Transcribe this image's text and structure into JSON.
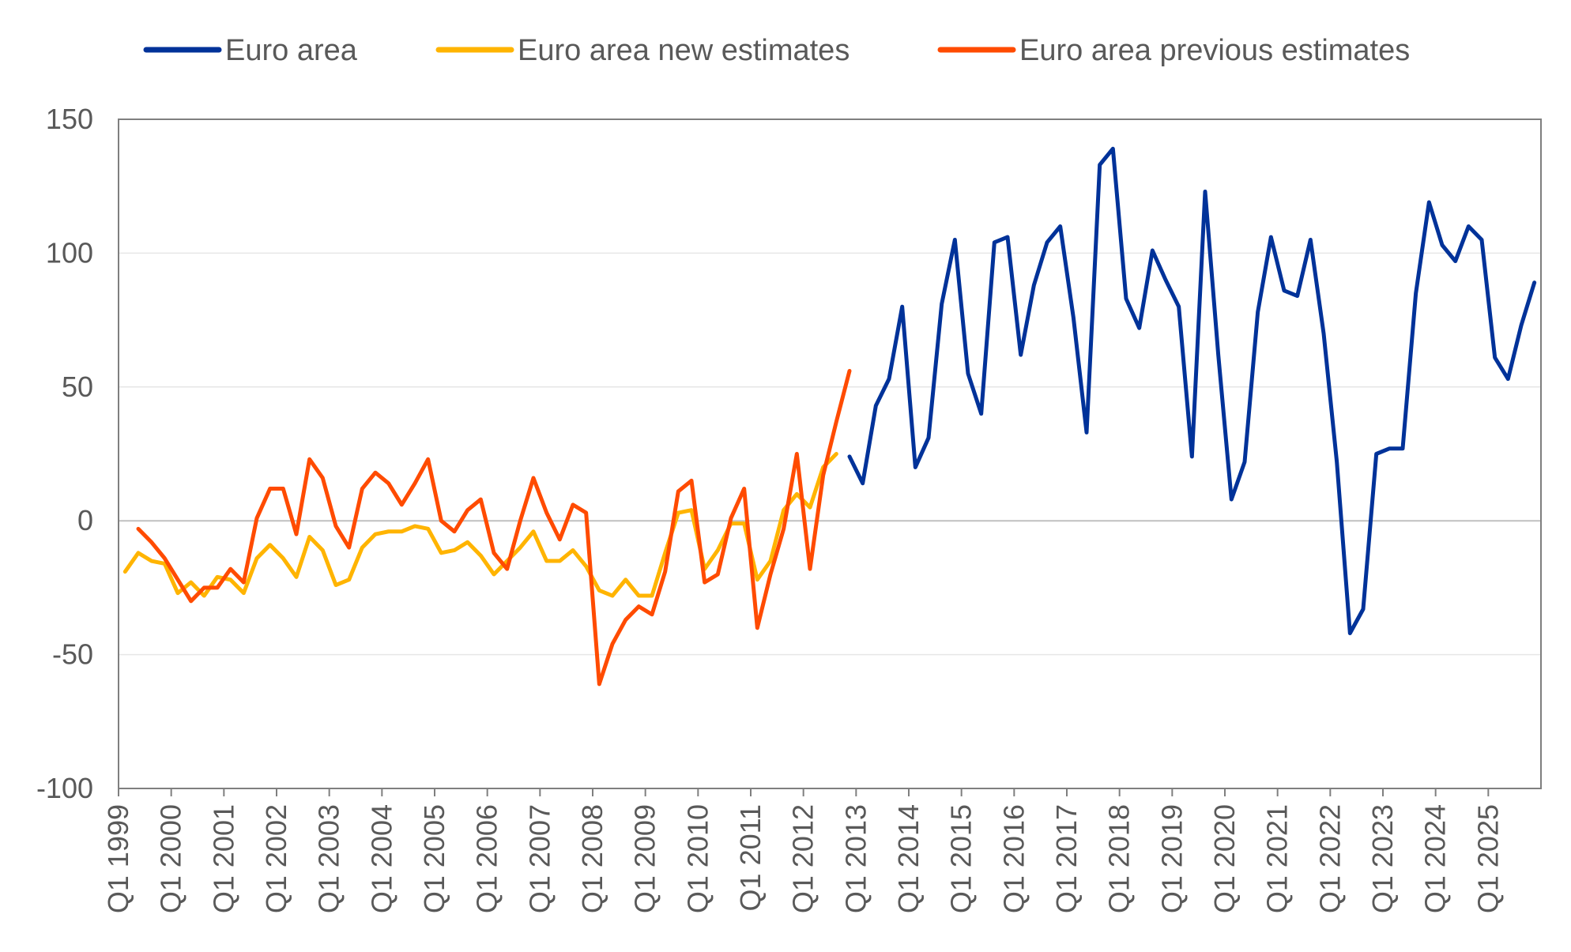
{
  "chart_data": {
    "type": "line",
    "title": "",
    "xlabel": "",
    "ylabel": "",
    "ylim": [
      -100,
      150
    ],
    "yticks": [
      -100,
      -50,
      0,
      50,
      100,
      150
    ],
    "x_start": "Q1 1999",
    "x_end": "Q4 2025",
    "xtick_labels": [
      "Q1 1999",
      "Q1 2000",
      "Q1 2001",
      "Q1 2002",
      "Q1 2003",
      "Q1 2004",
      "Q1 2005",
      "Q1 2006",
      "Q1 2007",
      "Q1 2008",
      "Q1 2009",
      "Q1 2010",
      "Q1 2011",
      "Q1 2012",
      "Q1 2013",
      "Q1 2014",
      "Q1 2015",
      "Q1 2016",
      "Q1 2017",
      "Q1 2018",
      "Q1 2019",
      "Q1 2020",
      "Q1 2021",
      "Q1 2022",
      "Q1 2023",
      "Q1 2024",
      "Q1 2025"
    ],
    "grid": "horizontal",
    "legend_position": "top",
    "series": [
      {
        "name": "Euro area",
        "color": "#003299",
        "start": "Q4 2012",
        "values": [
          24,
          14,
          43,
          53,
          80,
          20,
          31,
          81,
          105,
          55,
          40,
          104,
          106,
          62,
          88,
          104,
          110,
          76,
          33,
          133,
          139,
          83,
          72,
          101,
          90,
          80,
          24,
          123,
          62,
          8,
          22,
          78,
          106,
          86,
          84,
          105,
          70,
          22,
          -42,
          -33,
          25,
          27,
          27,
          85,
          119,
          103,
          97,
          110,
          105,
          61,
          53,
          73,
          89
        ]
      },
      {
        "name": "Euro area new estimates",
        "color": "#FFB400",
        "start": "Q1 1999",
        "values": [
          -19,
          -12,
          -15,
          -16,
          -27,
          -23,
          -28,
          -21,
          -22,
          -27,
          -14,
          -9,
          -14,
          -21,
          -6,
          -11,
          -24,
          -22,
          -10,
          -5,
          -4,
          -4,
          -2,
          -3,
          -12,
          -11,
          -8,
          -13,
          -20,
          -15,
          -10,
          -4,
          -15,
          -15,
          -11,
          -17,
          -26,
          -28,
          -22,
          -28,
          -28,
          -12,
          3,
          4,
          -18,
          -11,
          -1,
          -1,
          -22,
          -15,
          4,
          10,
          5,
          20,
          25
        ]
      },
      {
        "name": "Euro area previous estimates",
        "color": "#FF4B00",
        "start": "Q2 1999",
        "values": [
          -3,
          -8,
          -14,
          -22,
          -30,
          -25,
          -25,
          -18,
          -23,
          1,
          12,
          12,
          -5,
          23,
          16,
          -2,
          -10,
          12,
          18,
          14,
          6,
          14,
          23,
          0,
          -4,
          4,
          8,
          -12,
          -18,
          0,
          16,
          3,
          -7,
          6,
          3,
          -61,
          -46,
          -37,
          -32,
          -35,
          -19,
          11,
          15,
          -23,
          -20,
          1,
          12,
          -40,
          -20,
          -3,
          25,
          -18,
          17,
          37,
          56
        ]
      }
    ]
  }
}
